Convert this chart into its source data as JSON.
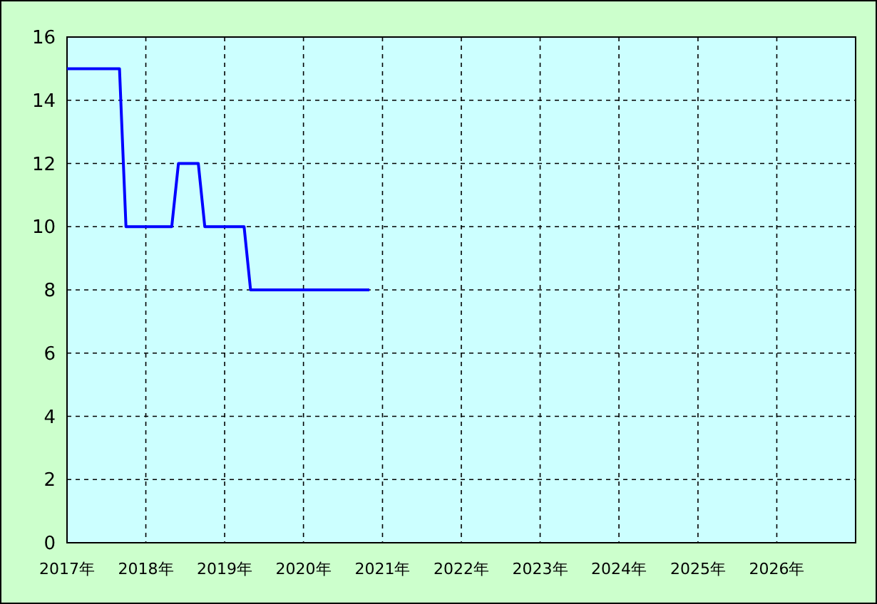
{
  "chart_data": {
    "type": "line",
    "x": [
      "2017-01",
      "2017-09",
      "2017-10",
      "2018-05",
      "2018-06",
      "2018-09",
      "2018-10",
      "2019-04",
      "2019-05",
      "2020-11"
    ],
    "series": [
      {
        "color": "#0000ff",
        "values": [
          15,
          15,
          10,
          10,
          12,
          12,
          10,
          10,
          8,
          8
        ]
      }
    ],
    "xlim": [
      "2017",
      "2027"
    ],
    "xticks": [
      {
        "value": "2017",
        "label": "2017年"
      },
      {
        "value": "2018",
        "label": "2018年"
      },
      {
        "value": "2019",
        "label": "2019年"
      },
      {
        "value": "2020",
        "label": "2020年"
      },
      {
        "value": "2021",
        "label": "2021年"
      },
      {
        "value": "2022",
        "label": "2022年"
      },
      {
        "value": "2023",
        "label": "2023年"
      },
      {
        "value": "2024",
        "label": "2024年"
      },
      {
        "value": "2025",
        "label": "2025年"
      },
      {
        "value": "2026",
        "label": "2026年"
      }
    ],
    "ylim": [
      0,
      16
    ],
    "yticks": [
      0,
      2,
      4,
      6,
      8,
      10,
      12,
      14,
      16
    ],
    "grid": true,
    "marker": "none",
    "line_style": "solid"
  }
}
